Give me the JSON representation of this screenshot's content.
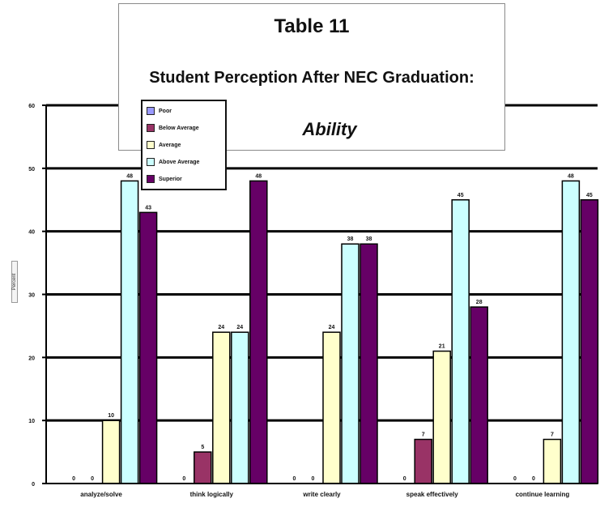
{
  "chart_data": {
    "type": "bar",
    "title": "Table 11",
    "subtitle": "Student Perception After NEC Graduation:",
    "chart_subject": "Ability",
    "ylabel": "Percent",
    "ylim": [
      0,
      60
    ],
    "yticks": [
      0,
      10,
      20,
      30,
      40,
      50,
      60
    ],
    "grid": true,
    "legend_position": "top-left",
    "categories": [
      "analyze/solve",
      "think logically",
      "write clearly",
      "speak effectively",
      "continue learning"
    ],
    "series": [
      {
        "name": "Poor",
        "color": "#9999ff",
        "values": [
          0,
          0,
          0,
          0,
          0
        ]
      },
      {
        "name": "Below Average",
        "color": "#993366",
        "values": [
          0,
          5,
          0,
          7,
          0
        ]
      },
      {
        "name": "Average",
        "color": "#ffffcc",
        "values": [
          10,
          24,
          24,
          21,
          7
        ]
      },
      {
        "name": "Above Average",
        "color": "#ccffff",
        "values": [
          48,
          24,
          38,
          45,
          48
        ]
      },
      {
        "name": "Superior",
        "color": "#660066",
        "values": [
          43,
          48,
          38,
          28,
          45
        ]
      }
    ]
  }
}
